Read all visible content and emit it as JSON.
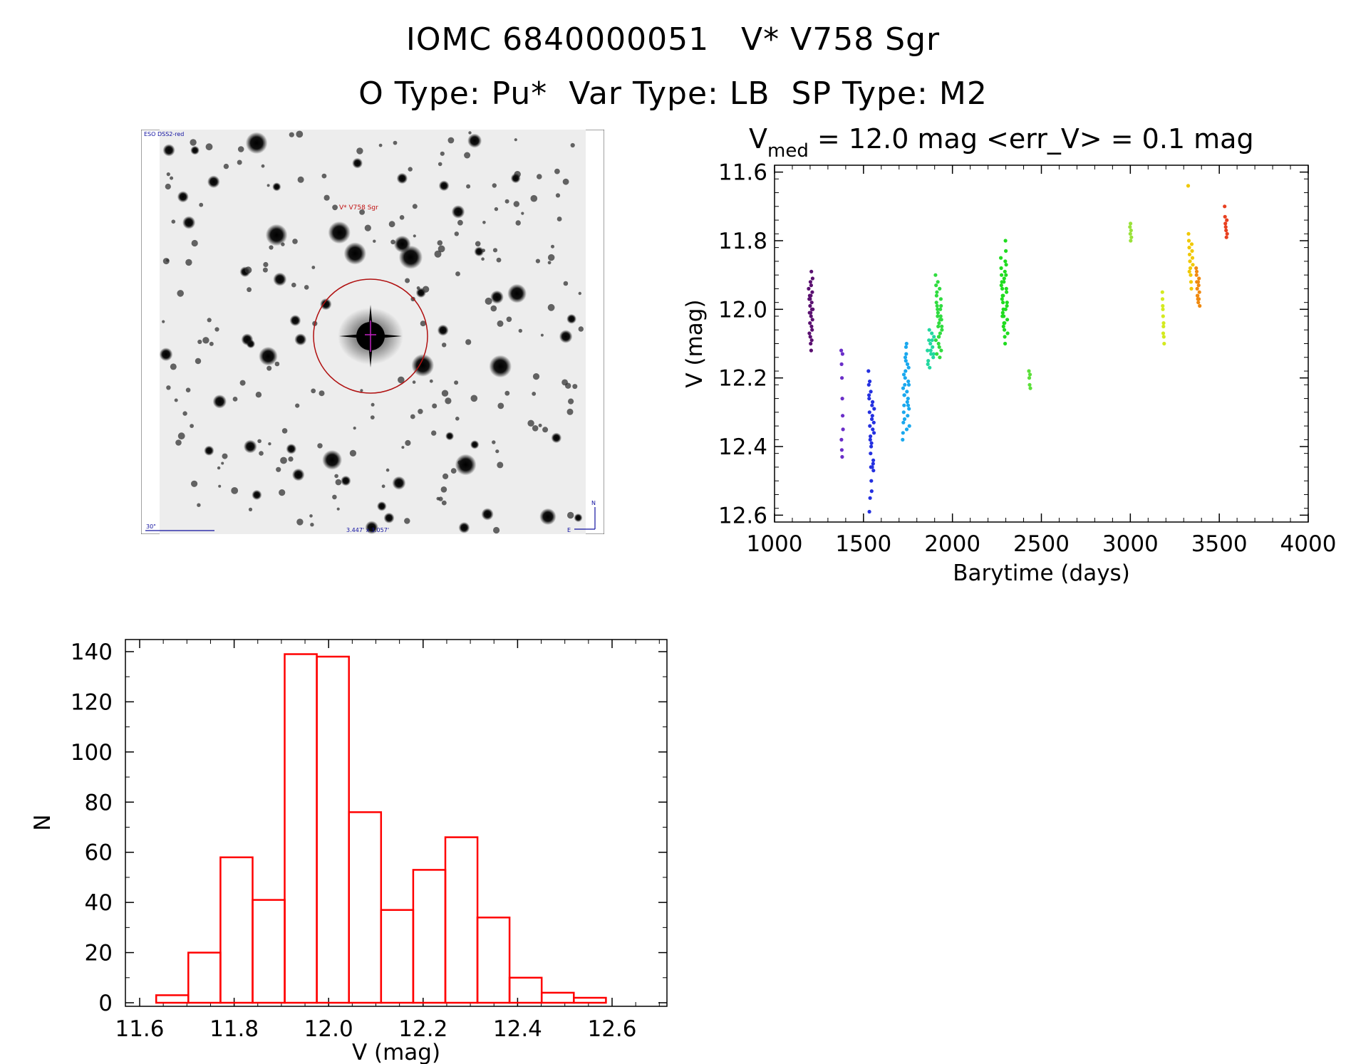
{
  "header": {
    "title_line1": "IOMC 6840000051   V* V758 Sgr",
    "title_line2": "O Type: Pu*  Var Type: LB  SP Type: M2"
  },
  "finder_chart": {
    "survey_label": "ESO DSS2-red",
    "object_label": "V* V758 Sgr",
    "scale_label": "30\"",
    "fov_label": "3.447' x 3.057'",
    "north_label": "N",
    "east_label": "E"
  },
  "chart_data": [
    {
      "type": "scatter",
      "title_prefix": "V",
      "title_subscript": "med",
      "title_rest": " = 12.0 mag <err_V> = 0.1 mag",
      "xlabel": "Barytime (days)",
      "ylabel": "V (mag)",
      "xlim": [
        1000,
        4000
      ],
      "ylim": [
        12.62,
        11.58
      ],
      "xticks": [
        1000,
        1500,
        2000,
        2500,
        3000,
        3500,
        4000
      ],
      "yticks": [
        11.6,
        11.8,
        12.0,
        12.2,
        12.4,
        12.6
      ],
      "ytick_labels": [
        "11.6",
        "11.8",
        "12.0",
        "12.2",
        "12.4",
        "12.6"
      ],
      "series": [
        {
          "name": "epoch-1",
          "color": "#5a1070",
          "x": [
            1192,
            1195,
            1197,
            1199,
            1200,
            1201,
            1202,
            1203,
            1204,
            1205,
            1206,
            1207,
            1208,
            1209,
            1210,
            1211,
            1212,
            1213,
            1214,
            1215,
            1196,
            1198,
            1206,
            1209,
            1203,
            1200
          ],
          "y": [
            11.94,
            11.97,
            12.01,
            12.04,
            11.99,
            12.08,
            11.92,
            12.1,
            11.96,
            12.02,
            12.12,
            11.89,
            12.05,
            11.98,
            12.0,
            12.06,
            11.95,
            12.03,
            11.91,
            12.0,
            12.07,
            11.96,
            11.93,
            12.09,
            12.01,
            11.97
          ]
        },
        {
          "name": "epoch-2",
          "color": "#6a2ec8",
          "x": [
            1375,
            1377,
            1379,
            1381,
            1383,
            1385,
            1376,
            1378,
            1380,
            1382
          ],
          "y": [
            12.12,
            12.16,
            12.2,
            12.26,
            12.31,
            12.35,
            12.38,
            12.41,
            12.43,
            12.13
          ]
        },
        {
          "name": "epoch-3",
          "color": "#2430e0",
          "x": [
            1528,
            1530,
            1532,
            1534,
            1536,
            1538,
            1540,
            1542,
            1544,
            1546,
            1548,
            1550,
            1552,
            1554,
            1556,
            1558,
            1560,
            1531,
            1535,
            1539,
            1543,
            1547,
            1551,
            1555,
            1559,
            1533,
            1537,
            1541,
            1545,
            1549
          ],
          "y": [
            12.18,
            12.22,
            12.26,
            12.3,
            12.34,
            12.38,
            12.42,
            12.46,
            12.5,
            12.53,
            12.28,
            12.31,
            12.35,
            12.45,
            12.47,
            12.33,
            12.29,
            12.25,
            12.21,
            12.37,
            12.4,
            12.32,
            12.27,
            12.44,
            12.36,
            12.59,
            12.55,
            12.24,
            12.39,
            12.46
          ]
        },
        {
          "name": "epoch-4",
          "color": "#1aa8ee",
          "x": [
            1720,
            1722,
            1724,
            1726,
            1728,
            1730,
            1732,
            1734,
            1736,
            1738,
            1740,
            1742,
            1744,
            1746,
            1748,
            1750,
            1752,
            1754,
            1756,
            1758,
            1723,
            1727,
            1731,
            1735,
            1739,
            1743,
            1747,
            1751,
            1755,
            1729
          ],
          "y": [
            12.38,
            12.36,
            12.33,
            12.3,
            12.28,
            12.25,
            12.22,
            12.2,
            12.18,
            12.15,
            12.13,
            12.1,
            12.24,
            12.27,
            12.31,
            12.26,
            12.21,
            12.17,
            12.29,
            12.34,
            12.23,
            12.19,
            12.32,
            12.14,
            12.11,
            12.35,
            12.16,
            12.28,
            12.22,
            12.25
          ]
        },
        {
          "name": "epoch-5",
          "color": "#22d8a0",
          "x": [
            1860,
            1864,
            1868,
            1872,
            1876,
            1880,
            1884,
            1888,
            1892,
            1896,
            1862,
            1870,
            1878,
            1886,
            1894
          ],
          "y": [
            12.12,
            12.15,
            12.09,
            12.17,
            12.1,
            12.13,
            12.07,
            12.11,
            12.14,
            12.08,
            12.16,
            12.06,
            12.12,
            12.09,
            12.13
          ]
        },
        {
          "name": "epoch-6",
          "color": "#30dc40",
          "x": [
            1905,
            1908,
            1911,
            1914,
            1917,
            1920,
            1923,
            1926,
            1929,
            1932,
            1935,
            1938,
            1941,
            1907,
            1913,
            1919,
            1925,
            1931,
            1937,
            1910,
            1916,
            1922,
            1928,
            1934,
            1940,
            1912,
            1918,
            1924,
            1930,
            1936
          ],
          "y": [
            11.9,
            11.93,
            11.96,
            11.99,
            12.02,
            12.05,
            12.08,
            12.11,
            12.14,
            12.0,
            11.97,
            12.03,
            12.06,
            12.09,
            11.95,
            12.01,
            12.04,
            12.07,
            12.12,
            11.98,
            12.0,
            12.1,
            11.94,
            12.02,
            12.05,
            12.13,
            11.92,
            12.08,
            12.03,
            11.99
          ]
        },
        {
          "name": "epoch-7",
          "color": "#20dc20",
          "x": [
            2272,
            2274,
            2276,
            2278,
            2280,
            2282,
            2284,
            2286,
            2288,
            2290,
            2292,
            2294,
            2296,
            2298,
            2300,
            2302,
            2304,
            2306,
            2308,
            2310,
            2275,
            2279,
            2283,
            2287,
            2291,
            2295,
            2299,
            2303,
            2307,
            2281,
            2285,
            2289,
            2293,
            2297,
            2301
          ],
          "y": [
            11.85,
            11.88,
            11.9,
            11.92,
            11.94,
            11.96,
            11.98,
            12.0,
            12.02,
            12.04,
            12.06,
            12.08,
            12.1,
            11.8,
            11.83,
            11.87,
            11.95,
            11.99,
            12.03,
            12.07,
            11.93,
            11.97,
            12.01,
            12.05,
            11.91,
            11.89,
            12.0,
            11.94,
            11.98,
            12.02,
            11.96,
            11.92,
            12.04,
            11.86,
            11.9
          ]
        },
        {
          "name": "epoch-8",
          "color": "#5ce03a",
          "x": [
            2430,
            2432,
            2434,
            2436,
            2438
          ],
          "y": [
            12.18,
            12.2,
            12.22,
            12.19,
            12.23
          ]
        },
        {
          "name": "epoch-9",
          "color": "#9ae23a",
          "x": [
            2998,
            3000,
            3002,
            3004,
            3006,
            3001
          ],
          "y": [
            11.76,
            11.78,
            11.8,
            11.77,
            11.79,
            11.75
          ]
        },
        {
          "name": "epoch-10",
          "color": "#d4ea20",
          "x": [
            3180,
            3182,
            3184,
            3186,
            3188,
            3190,
            3183,
            3187,
            3181,
            3185
          ],
          "y": [
            11.95,
            11.99,
            12.02,
            12.05,
            12.08,
            12.1,
            12.0,
            12.04,
            11.97,
            12.07
          ]
        },
        {
          "name": "epoch-11",
          "color": "#f0c800",
          "x": [
            3325,
            3327,
            3329,
            3331,
            3333,
            3335,
            3337,
            3339,
            3341,
            3343,
            3345,
            3347,
            3349,
            3351,
            3332
          ],
          "y": [
            11.64,
            11.78,
            11.8,
            11.82,
            11.84,
            11.86,
            11.88,
            11.9,
            11.92,
            11.94,
            11.81,
            11.83,
            11.85,
            11.87,
            11.89
          ]
        },
        {
          "name": "epoch-12",
          "color": "#f08a10",
          "x": [
            3370,
            3372,
            3374,
            3376,
            3378,
            3380,
            3382,
            3384,
            3386,
            3388,
            3390,
            3373,
            3377,
            3381,
            3385
          ],
          "y": [
            11.88,
            11.9,
            11.92,
            11.94,
            11.96,
            11.97,
            11.98,
            11.93,
            11.91,
            11.95,
            11.99,
            11.89,
            11.96,
            11.92,
            11.97
          ]
        },
        {
          "name": "epoch-13",
          "color": "#e84020",
          "x": [
            3530,
            3532,
            3534,
            3536,
            3538,
            3540,
            3542,
            3544
          ],
          "y": [
            11.7,
            11.73,
            11.75,
            11.76,
            11.77,
            11.79,
            11.74,
            11.78
          ]
        }
      ]
    },
    {
      "type": "bar",
      "histogram": true,
      "xlabel": "V (mag)",
      "ylabel": "N",
      "xlim": [
        11.6,
        12.7
      ],
      "ylim": [
        0,
        145
      ],
      "xticks": [
        11.6,
        11.8,
        12.0,
        12.2,
        12.4,
        12.6
      ],
      "xtick_labels": [
        "11.6",
        "11.8",
        "12.0",
        "12.2",
        "12.4",
        "12.6"
      ],
      "yticks": [
        0,
        20,
        40,
        60,
        80,
        100,
        120,
        140
      ],
      "bin_edges": [
        11.635,
        11.703,
        11.771,
        11.839,
        11.907,
        11.975,
        12.043,
        12.111,
        12.179,
        12.247,
        12.315,
        12.383,
        12.451,
        12.519,
        12.587
      ],
      "bin_width": 0.068,
      "values": [
        3,
        20,
        58,
        41,
        139,
        138,
        76,
        37,
        53,
        66,
        34,
        10,
        4,
        2
      ],
      "color": "#ff0000"
    }
  ]
}
